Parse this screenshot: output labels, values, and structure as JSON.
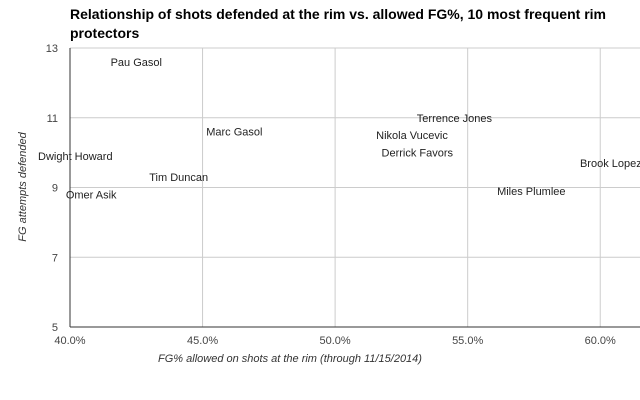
{
  "chart_data": {
    "type": "scatter",
    "title": "Relationship of shots defended at the rim vs. allowed FG%, 10 most frequent rim protectors",
    "xlabel": "FG% allowed on shots at the rim (through 11/15/2014)",
    "ylabel": "FG attempts defended",
    "xlim": [
      40.0,
      61.5
    ],
    "ylim": [
      5,
      13
    ],
    "x_ticks": [
      40.0,
      45.0,
      50.0,
      55.0,
      60.0
    ],
    "x_tick_labels": [
      "40.0%",
      "45.0%",
      "50.0%",
      "55.0%",
      "60.0%"
    ],
    "y_ticks": [
      5,
      7,
      9,
      11,
      13
    ],
    "y_tick_labels": [
      "5",
      "7",
      "9",
      "11",
      "13"
    ],
    "grid": true,
    "legend": "none",
    "points": [
      {
        "label": "Pau Gasol",
        "x": 42.5,
        "y": 12.6
      },
      {
        "label": "Marc Gasol",
        "x": 46.2,
        "y": 10.6
      },
      {
        "label": "Dwight Howard",
        "x": 40.2,
        "y": 9.9
      },
      {
        "label": "Tim Duncan",
        "x": 44.1,
        "y": 9.3
      },
      {
        "label": "Omer Asik",
        "x": 40.8,
        "y": 8.8
      },
      {
        "label": "Terrence Jones",
        "x": 54.5,
        "y": 11.0
      },
      {
        "label": "Nikola Vucevic",
        "x": 52.9,
        "y": 10.5
      },
      {
        "label": "Derrick Favors",
        "x": 53.1,
        "y": 10.0
      },
      {
        "label": "Brook Lopez",
        "x": 60.4,
        "y": 9.7
      },
      {
        "label": "Miles Plumlee",
        "x": 57.4,
        "y": 8.9
      }
    ],
    "colors": {
      "gridline": "#cccccc",
      "axis": "#333333",
      "tick_text": "#444444",
      "point_text": "#222222"
    }
  }
}
